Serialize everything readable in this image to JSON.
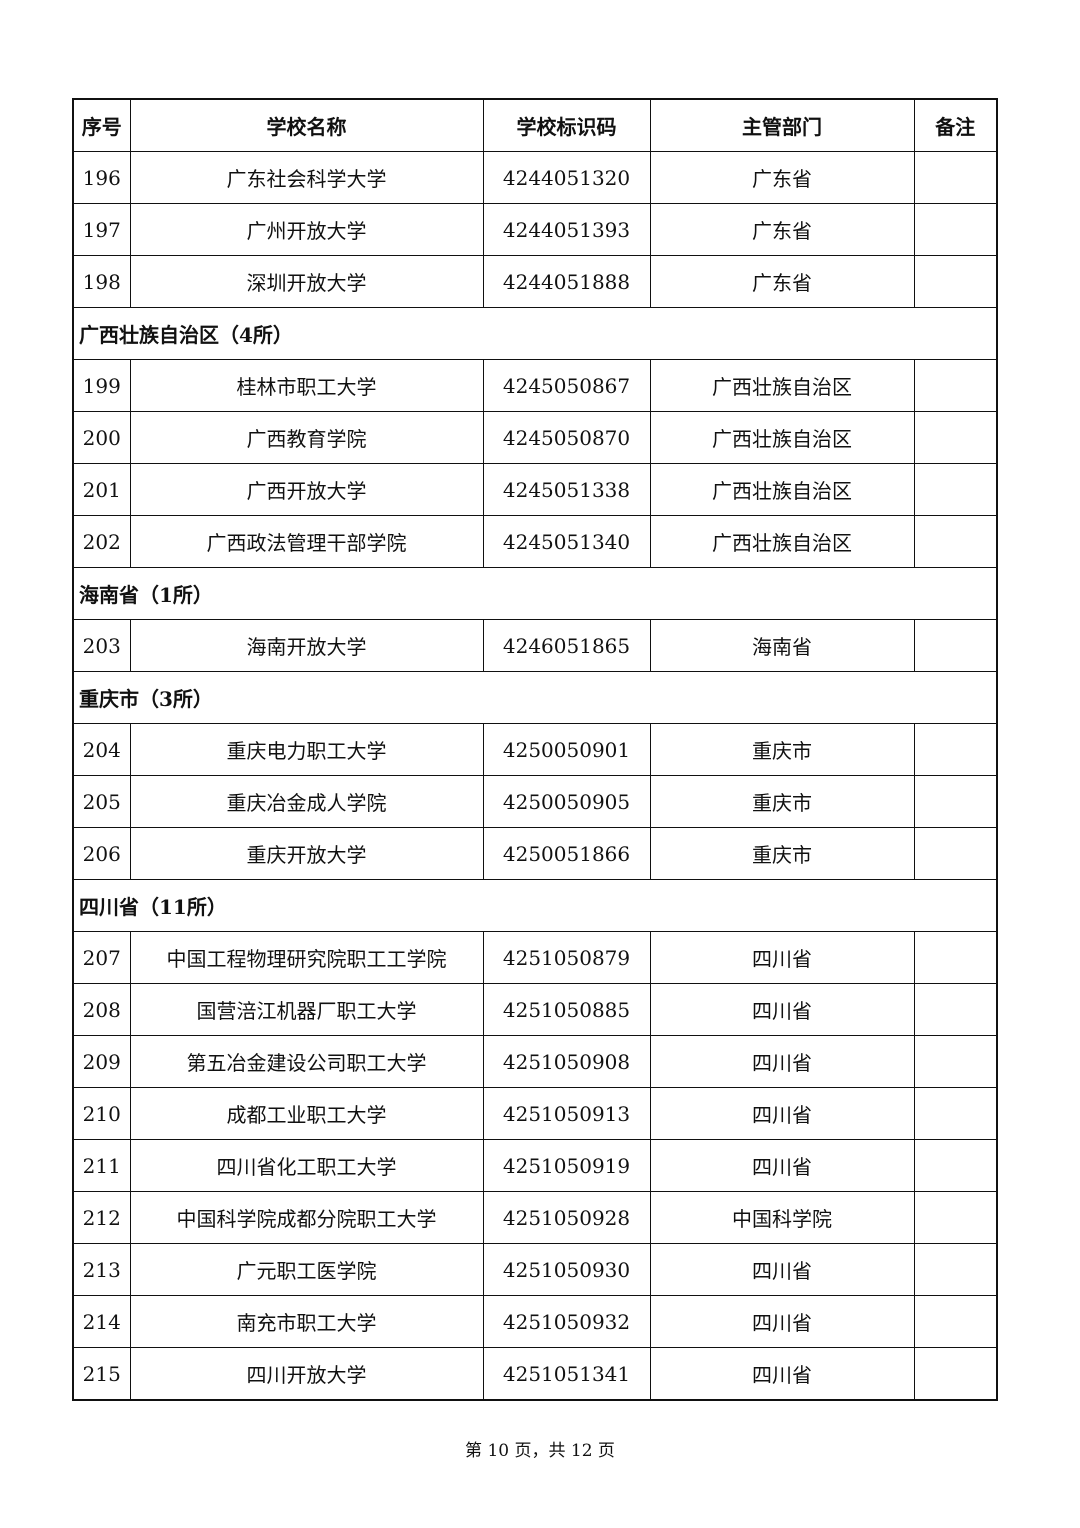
{
  "headers": [
    "序号",
    "学校名称",
    "学校标识码",
    "主管部门",
    "备注"
  ],
  "rows": [
    {
      "type": "row",
      "no": "196",
      "name": "广东社会科学大学",
      "code": "4244051320",
      "dept": "广东省",
      "note": ""
    },
    {
      "type": "row",
      "no": "197",
      "name": "广州开放大学",
      "code": "4244051393",
      "dept": "广东省",
      "note": ""
    },
    {
      "type": "row",
      "no": "198",
      "name": "深圳开放大学",
      "code": "4244051888",
      "dept": "广东省",
      "note": ""
    },
    {
      "type": "region",
      "label": "广西壮族自治区（4所）"
    },
    {
      "type": "row",
      "no": "199",
      "name": "桂林市职工大学",
      "code": "4245050867",
      "dept": "广西壮族自治区",
      "note": ""
    },
    {
      "type": "row",
      "no": "200",
      "name": "广西教育学院",
      "code": "4245050870",
      "dept": "广西壮族自治区",
      "note": ""
    },
    {
      "type": "row",
      "no": "201",
      "name": "广西开放大学",
      "code": "4245051338",
      "dept": "广西壮族自治区",
      "note": ""
    },
    {
      "type": "row",
      "no": "202",
      "name": "广西政法管理干部学院",
      "code": "4245051340",
      "dept": "广西壮族自治区",
      "note": ""
    },
    {
      "type": "region",
      "label": "海南省（1所）"
    },
    {
      "type": "row",
      "no": "203",
      "name": "海南开放大学",
      "code": "4246051865",
      "dept": "海南省",
      "note": ""
    },
    {
      "type": "region",
      "label": "重庆市（3所）"
    },
    {
      "type": "row",
      "no": "204",
      "name": "重庆电力职工大学",
      "code": "4250050901",
      "dept": "重庆市",
      "note": ""
    },
    {
      "type": "row",
      "no": "205",
      "name": "重庆冶金成人学院",
      "code": "4250050905",
      "dept": "重庆市",
      "note": ""
    },
    {
      "type": "row",
      "no": "206",
      "name": "重庆开放大学",
      "code": "4250051866",
      "dept": "重庆市",
      "note": ""
    },
    {
      "type": "region",
      "label": "四川省（11所）"
    },
    {
      "type": "row",
      "no": "207",
      "name": "中国工程物理研究院职工工学院",
      "code": "4251050879",
      "dept": "四川省",
      "note": ""
    },
    {
      "type": "row",
      "no": "208",
      "name": "国营涪江机器厂职工大学",
      "code": "4251050885",
      "dept": "四川省",
      "note": ""
    },
    {
      "type": "row",
      "no": "209",
      "name": "第五冶金建设公司职工大学",
      "code": "4251050908",
      "dept": "四川省",
      "note": ""
    },
    {
      "type": "row",
      "no": "210",
      "name": "成都工业职工大学",
      "code": "4251050913",
      "dept": "四川省",
      "note": ""
    },
    {
      "type": "row",
      "no": "211",
      "name": "四川省化工职工大学",
      "code": "4251050919",
      "dept": "四川省",
      "note": ""
    },
    {
      "type": "row",
      "no": "212",
      "name": "中国科学院成都分院职工大学",
      "code": "4251050928",
      "dept": "中国科学院",
      "note": ""
    },
    {
      "type": "row",
      "no": "213",
      "name": "广元职工医学院",
      "code": "4251050930",
      "dept": "四川省",
      "note": ""
    },
    {
      "type": "row",
      "no": "214",
      "name": "南充市职工大学",
      "code": "4251050932",
      "dept": "四川省",
      "note": ""
    },
    {
      "type": "row",
      "no": "215",
      "name": "四川开放大学",
      "code": "4251051341",
      "dept": "四川省",
      "note": ""
    }
  ],
  "footer": "第 10 页，共 12 页"
}
